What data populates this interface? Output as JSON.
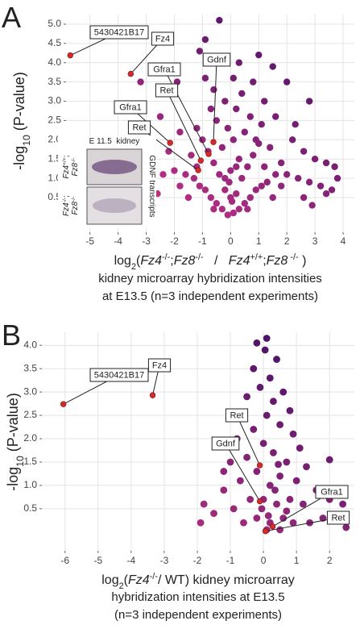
{
  "chart_data": [
    {
      "type": "scatter",
      "panel": "A",
      "y_label": [
        {
          "text": "-log"
        },
        {
          "text": "10",
          "shift": "sub"
        },
        {
          "text": " (P-value)"
        }
      ],
      "x_label": [
        {
          "text": "log"
        },
        {
          "text": "2",
          "shift": "sub"
        },
        {
          "text": "("
        },
        {
          "text": "Fz4",
          "italic": true
        },
        {
          "text": "-/-",
          "shift": "super"
        },
        {
          "text": ";"
        },
        {
          "text": "Fz8",
          "italic": true
        },
        {
          "text": "-/-",
          "shift": "super"
        },
        {
          "text": "   /   "
        },
        {
          "text": "Fz4",
          "italic": true
        },
        {
          "text": "+/+",
          "shift": "super"
        },
        {
          "text": ";"
        },
        {
          "text": "Fz8",
          "italic": true
        },
        {
          "text": " -/-",
          "shift": "super"
        },
        {
          "text": " )"
        }
      ],
      "subtitle_lines": [
        "kidney microarray hybridization intensities",
        "at E13.5 (n=3 independent experiments)"
      ],
      "xlim": [
        -5.85,
        4.4
      ],
      "ylim": [
        -0.4,
        5.25
      ],
      "xticks": [
        -5,
        -4,
        -3,
        -2,
        -1,
        0,
        1,
        2,
        3,
        4
      ],
      "yticks": [
        0.5,
        {
          "value": 1,
          "label": "1.0"
        },
        1.5,
        {
          "value": 2,
          "label": "2.0"
        },
        2.5,
        {
          "value": 3,
          "label": "3.0"
        },
        3.5,
        {
          "value": 4,
          "label": "4.0"
        },
        4.5,
        {
          "value": 5,
          "label": "5.0"
        }
      ],
      "grid": true,
      "point_colors": [
        "#d2368a",
        "#3a1062"
      ],
      "highlight_color": "#d42a2a",
      "x": [
        -0.1,
        0.1,
        0.3,
        -0.3,
        0.5,
        -0.5,
        0.7,
        -0.7,
        0.9,
        -0.9,
        1.1,
        -1.1,
        1.3,
        -1.3,
        1.6,
        -1.6,
        2.0,
        -2.0,
        2.4,
        -2.4,
        2.8,
        -2.8,
        3.2,
        -3.0,
        3.6,
        3.4,
        0.2,
        -0.2,
        0.4,
        -0.4,
        0.6,
        -0.6,
        0.8,
        -0.8,
        1.0,
        -1.0,
        1.4,
        -1.4,
        0.3,
        -0.3,
        0.1,
        -0.1,
        0.5,
        -0.5,
        0.7,
        -0.7,
        1.1,
        -1.2,
        0.2,
        -0.2,
        0.4,
        -0.6,
        0.8,
        -0.9,
        1.2,
        1.6,
        -1.8,
        2.2,
        2.6,
        3.0,
        3.4,
        3.7,
        2.8,
        1.5,
        2.0,
        -0.4,
        -0.9,
        -1.1,
        0.1,
        0.3,
        1.0,
        -1.9,
        -2.5,
        -2.2,
        1.8,
        -1.5,
        1.5,
        -2.6,
        2.6,
        0.0,
        0.05,
        -0.05,
        3.8,
        2.3,
        -3.6,
        -3.4,
        -3.2,
        0.6,
        -0.6,
        1.8,
        -1.8,
        1.2,
        -1.2,
        0.9,
        -2.0,
        -2.9,
        2.9,
        -0.2,
        0.2,
        0.0
      ],
      "values": [
        0.05,
        0.1,
        0.2,
        0.2,
        0.35,
        0.35,
        0.5,
        0.5,
        0.7,
        0.7,
        0.8,
        0.8,
        0.9,
        1.0,
        1.1,
        1.1,
        1.1,
        1.2,
        1.0,
        1.1,
        0.9,
        0.8,
        0.8,
        1.1,
        0.7,
        0.6,
        0.6,
        0.7,
        1.0,
        1.1,
        1.3,
        1.4,
        1.6,
        1.7,
        1.9,
        2.0,
        1.8,
        1.6,
        1.5,
        1.8,
        2.0,
        2.3,
        2.2,
        2.5,
        2.6,
        2.8,
        2.4,
        2.3,
        2.8,
        3.0,
        3.2,
        3.3,
        3.5,
        3.6,
        3.0,
        2.6,
        2.2,
        2.0,
        1.7,
        1.5,
        1.4,
        1.3,
        3.0,
        3.9,
        3.5,
        5.1,
        4.6,
        4.3,
        3.6,
        4.0,
        4.2,
        3.5,
        2.6,
        1.7,
        1.4,
        0.5,
        0.5,
        0.6,
        0.5,
        1.2,
        0.4,
        0.9,
        1.0,
        2.4,
        2.9,
        2.3,
        3.5,
        0.2,
        0.2,
        0.8,
        0.8,
        1.3,
        1.3,
        2.0,
        3.3,
        0.4,
        0.3,
        1.0,
        1.3,
        0.5
      ],
      "highlights": [
        {
          "label": "5430421B17",
          "x": -5.7,
          "y": 4.19
        },
        {
          "label": "Fz4",
          "x": -3.55,
          "y": 3.71
        },
        {
          "label": "Gfra1",
          "x": -0.78,
          "y": 1.63
        },
        {
          "label": "Gdnf",
          "x": -0.61,
          "y": 1.94
        },
        {
          "label": "Ret",
          "x": -1.06,
          "y": 1.46
        },
        {
          "label": "Gfra1",
          "x": -2.15,
          "y": 1.92
        },
        {
          "label": "Ret",
          "x": -1.15,
          "y": 1.21
        }
      ],
      "inset": {
        "title": "E 11.5  kidney",
        "top_label": [
          [
            {
              "text": "Fz4",
              "italic": true
            },
            {
              "text": "+/+",
              "shift": "super"
            },
            {
              "text": ";"
            }
          ],
          [
            {
              "text": "Fz8",
              "italic": true
            },
            {
              "text": "-/-",
              "shift": "super"
            }
          ]
        ],
        "bottom_label": [
          [
            {
              "text": "Fz4",
              "italic": true
            },
            {
              "text": "-/-",
              "shift": "super"
            },
            {
              "text": ";"
            }
          ],
          [
            {
              "text": "Fz8",
              "italic": true
            },
            {
              "text": "-/-",
              "shift": "super"
            }
          ]
        ],
        "side_label": "GDNF transcripts"
      }
    },
    {
      "type": "scatter",
      "panel": "B",
      "y_label": [
        {
          "text": "-log"
        },
        {
          "text": "10",
          "shift": "sub"
        },
        {
          "text": " (P-value)"
        }
      ],
      "x_label": [
        {
          "text": "log"
        },
        {
          "text": "2",
          "shift": "sub"
        },
        {
          "text": "("
        },
        {
          "text": "Fz4",
          "italic": true
        },
        {
          "text": "-/-",
          "shift": "super"
        },
        {
          "text": "/ WT) kidney microarray"
        }
      ],
      "subtitle_lines": [
        "hybridization intensities at E13.5",
        "(n=3 independent experiments)"
      ],
      "xlim": [
        -6.7,
        2.75
      ],
      "ylim": [
        -0.4,
        4.28
      ],
      "xticks": [
        -6,
        -5,
        -4,
        -3,
        -2,
        -1,
        0,
        1,
        2
      ],
      "yticks": [
        0.5,
        {
          "value": 1,
          "label": "1.0"
        },
        1.5,
        {
          "value": 2,
          "label": "2.0"
        },
        2.5,
        {
          "value": 3,
          "label": "3.0"
        },
        3.5,
        {
          "value": 4,
          "label": "4.0"
        }
      ],
      "grid": true,
      "point_colors": [
        "#c93585",
        "#3a1062"
      ],
      "highlight_color": "#d42a2a",
      "x": [
        0.1,
        -0.2,
        0.05,
        0.4,
        -0.3,
        0.2,
        0.6,
        -0.1,
        -0.5,
        0.3,
        0.8,
        -0.6,
        0.1,
        0.5,
        -0.3,
        0.9,
        -0.8,
        1.1,
        0.0,
        0.3,
        -0.5,
        0.7,
        1.3,
        -1.0,
        2.0,
        -0.2,
        0.5,
        1.0,
        -0.7,
        1.6,
        -1.2,
        0.2,
        0.0,
        0.4,
        -0.4,
        0.8,
        1.2,
        -0.9,
        2.0,
        2.4,
        -1.5,
        1.8,
        2.3,
        0.6,
        -0.2,
        0.2,
        0.9,
        -0.6,
        1.4,
        0.1,
        0.5,
        -1.8,
        -1.9,
        2.5,
        -1.2,
        0.35,
        0.7,
        -0.05,
        0.15,
        0.45
      ],
      "values": [
        4.15,
        4.05,
        3.9,
        3.7,
        3.5,
        3.3,
        3.0,
        3.1,
        2.9,
        2.8,
        2.6,
        2.5,
        2.5,
        2.3,
        2.2,
        2.1,
        2.0,
        1.8,
        1.9,
        1.7,
        1.6,
        1.5,
        1.4,
        1.5,
        1.55,
        1.3,
        1.2,
        1.1,
        1.1,
        0.9,
        0.9,
        1.0,
        0.7,
        0.6,
        0.7,
        0.7,
        0.6,
        0.5,
        0.7,
        0.6,
        0.4,
        0.3,
        0.3,
        0.3,
        0.3,
        0.2,
        0.2,
        0.2,
        0.2,
        0.05,
        0.05,
        0.6,
        0.2,
        0.1,
        1.3,
        0.9,
        0.45,
        0.5,
        0.35,
        1.45
      ],
      "highlights": [
        {
          "label": "5430421B17",
          "x": -6.05,
          "y": 2.74
        },
        {
          "label": "Fz4",
          "x": -3.35,
          "y": 2.93
        },
        {
          "label": "Ret",
          "x": -0.11,
          "y": 1.43
        },
        {
          "label": "Gdnf",
          "x": -0.11,
          "y": 0.66
        },
        {
          "label": "Gfra1",
          "x": 0.28,
          "y": 0.12
        },
        {
          "label": "Ret",
          "x": 0.06,
          "y": 0.02
        }
      ]
    }
  ]
}
